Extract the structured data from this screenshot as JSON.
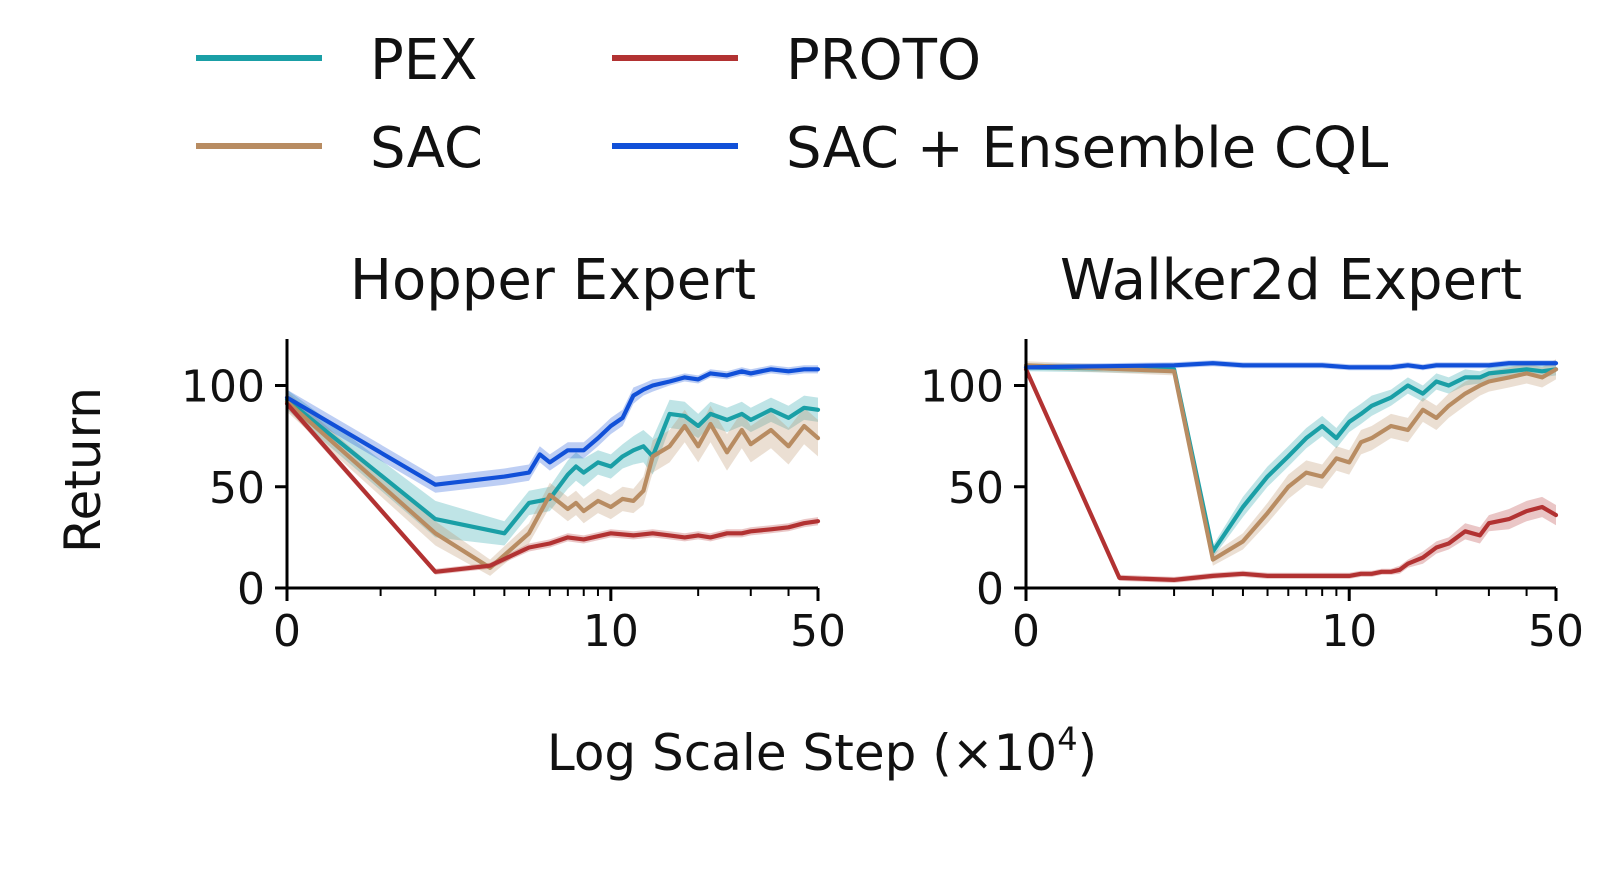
{
  "colors": {
    "PEX": "#1a9fa6",
    "SAC": "#b88c62",
    "PROTO": "#b23232",
    "SAC + Ensemble CQL": "#1150d8"
  },
  "chart_data": [
    {
      "type": "line",
      "title": "Hopper Expert",
      "xlabel": "Log Scale Step (×10⁴)",
      "ylabel": "Return",
      "x_scale": "log1p",
      "xlim": [
        0,
        50
      ],
      "ylim": [
        0,
        120
      ],
      "x_ticks": [
        0,
        10,
        50
      ],
      "x_tick_labels": [
        "0",
        "10",
        "50"
      ],
      "y_ticks": [
        0,
        50,
        100
      ],
      "y_tick_labels": [
        "0",
        "50",
        "100"
      ],
      "grid": false,
      "series": [
        {
          "name": "PEX",
          "x": [
            0,
            2,
            4,
            5,
            6,
            7,
            7.5,
            8,
            9,
            10,
            11,
            12,
            13,
            14,
            16,
            18,
            20,
            22,
            25,
            28,
            30,
            35,
            40,
            45,
            50
          ],
          "y": [
            93,
            34,
            27,
            42,
            44,
            56,
            60,
            57,
            62,
            60,
            65,
            68,
            70,
            65,
            86,
            85,
            80,
            86,
            83,
            86,
            83,
            88,
            84,
            89,
            88
          ],
          "band": [
            5,
            9,
            6,
            6,
            6,
            7,
            7,
            7,
            6,
            6,
            6,
            7,
            8,
            9,
            7,
            7,
            6,
            6,
            6,
            6,
            6,
            6,
            6,
            6,
            6
          ]
        },
        {
          "name": "SAC",
          "x": [
            0,
            2,
            3.5,
            5,
            6,
            7,
            7.5,
            8,
            9,
            10,
            11,
            12,
            13,
            14,
            16,
            18,
            20,
            22,
            25,
            28,
            30,
            35,
            40,
            45,
            50
          ],
          "y": [
            92,
            27,
            10,
            27,
            46,
            39,
            42,
            38,
            43,
            40,
            44,
            43,
            48,
            65,
            70,
            80,
            70,
            81,
            67,
            78,
            71,
            78,
            70,
            80,
            74
          ],
          "band": [
            5,
            6,
            4,
            5,
            6,
            6,
            6,
            6,
            6,
            6,
            6,
            6,
            7,
            8,
            8,
            8,
            8,
            9,
            9,
            9,
            9,
            9,
            9,
            9,
            9
          ]
        },
        {
          "name": "PROTO",
          "x": [
            0,
            2,
            3.5,
            5,
            6,
            7,
            8,
            10,
            12,
            14,
            16,
            18,
            20,
            22,
            25,
            28,
            30,
            35,
            40,
            45,
            50
          ],
          "y": [
            91,
            8,
            11,
            20,
            22,
            25,
            24,
            27,
            26,
            27,
            26,
            25,
            26,
            25,
            27,
            27,
            28,
            29,
            30,
            32,
            33
          ],
          "band": [
            2,
            1.5,
            1.5,
            2,
            2,
            2,
            2,
            2,
            2,
            2,
            2,
            2,
            2,
            2,
            2,
            2,
            2,
            2,
            2,
            2,
            2
          ]
        },
        {
          "name": "SAC + Ensemble CQL",
          "x": [
            0,
            2,
            4,
            5,
            5.5,
            6,
            7,
            8,
            9,
            10,
            11,
            12,
            13,
            14,
            16,
            18,
            20,
            22,
            25,
            28,
            30,
            35,
            40,
            45,
            50
          ],
          "y": [
            94,
            51,
            55,
            57,
            66,
            62,
            68,
            68,
            74,
            80,
            84,
            95,
            98,
            100,
            102,
            104,
            103,
            106,
            105,
            107,
            106,
            108,
            107,
            108,
            108
          ],
          "band": [
            4,
            4,
            4,
            4,
            4,
            4,
            4,
            4,
            4,
            4,
            4,
            4,
            3,
            3,
            2,
            2,
            2,
            2,
            2,
            2,
            2,
            2,
            2,
            2,
            2
          ]
        }
      ]
    },
    {
      "type": "line",
      "title": "Walker2d Expert",
      "xlabel": "Log Scale Step (×10⁴)",
      "ylabel": "",
      "x_scale": "log1p",
      "xlim": [
        0,
        50
      ],
      "ylim": [
        0,
        120
      ],
      "x_ticks": [
        0,
        10,
        50
      ],
      "x_tick_labels": [
        "0",
        "10",
        "50"
      ],
      "y_ticks": [
        0,
        50,
        100
      ],
      "y_tick_labels": [
        "0",
        "50",
        "100"
      ],
      "grid": false,
      "series": [
        {
          "name": "PEX",
          "x": [
            0,
            2,
            3,
            4,
            5,
            6,
            7,
            8,
            9,
            10,
            11,
            12,
            14,
            16,
            18,
            20,
            22,
            25,
            28,
            30,
            35,
            40,
            45,
            50
          ],
          "y": [
            109,
            108,
            18,
            40,
            55,
            65,
            74,
            80,
            74,
            82,
            86,
            90,
            94,
            100,
            96,
            102,
            100,
            104,
            104,
            106,
            107,
            108,
            107,
            108
          ],
          "band": [
            2,
            2,
            3,
            5,
            5,
            5,
            5,
            5,
            5,
            5,
            5,
            5,
            4,
            4,
            4,
            4,
            4,
            4,
            3,
            3,
            3,
            3,
            3,
            3
          ]
        },
        {
          "name": "SAC",
          "x": [
            0,
            2,
            3,
            4,
            5,
            6,
            7,
            8,
            9,
            10,
            11,
            12,
            14,
            16,
            18,
            20,
            22,
            25,
            28,
            30,
            35,
            40,
            45,
            50
          ],
          "y": [
            110,
            107,
            14,
            23,
            37,
            50,
            57,
            55,
            64,
            62,
            72,
            74,
            80,
            78,
            88,
            84,
            90,
            96,
            100,
            102,
            104,
            106,
            104,
            108
          ],
          "band": [
            2,
            2,
            3,
            4,
            5,
            6,
            6,
            6,
            6,
            6,
            6,
            6,
            6,
            6,
            6,
            6,
            6,
            6,
            5,
            5,
            5,
            5,
            5,
            5
          ]
        },
        {
          "name": "PROTO",
          "x": [
            0,
            1,
            2,
            3,
            4,
            5,
            6,
            7,
            8,
            9,
            10,
            11,
            12,
            13,
            14,
            15,
            16,
            18,
            20,
            22,
            25,
            28,
            30,
            35,
            40,
            45,
            50
          ],
          "y": [
            108,
            5,
            4,
            6,
            7,
            6,
            6,
            6,
            6,
            6,
            6,
            7,
            7,
            8,
            8,
            9,
            12,
            15,
            20,
            22,
            28,
            26,
            32,
            34,
            38,
            40,
            36
          ],
          "band": [
            2,
            1.5,
            1.5,
            1.5,
            1.5,
            1.5,
            1.5,
            1.5,
            1.5,
            1.5,
            1.5,
            1.5,
            1.5,
            1.5,
            1.5,
            2,
            2,
            3,
            3,
            3,
            4,
            4,
            4,
            5,
            5,
            5,
            5
          ]
        },
        {
          "name": "SAC + Ensemble CQL",
          "x": [
            0,
            2,
            3,
            4,
            5,
            6,
            8,
            10,
            12,
            14,
            16,
            18,
            20,
            25,
            30,
            35,
            40,
            45,
            50
          ],
          "y": [
            109,
            110,
            111,
            110,
            110,
            110,
            110,
            109,
            109,
            109,
            110,
            109,
            110,
            110,
            110,
            111,
            111,
            111,
            111
          ],
          "band": [
            1.5,
            1.5,
            1.5,
            1.5,
            1.5,
            1.5,
            1.5,
            1.5,
            1.5,
            1.5,
            1.5,
            1.5,
            1.5,
            1.5,
            1.5,
            1.5,
            1.5,
            1.5,
            1.5
          ]
        }
      ]
    }
  ],
  "legend": {
    "placement": "top",
    "entries": [
      "PEX",
      "SAC",
      "PROTO",
      "SAC + Ensemble CQL"
    ]
  },
  "figure": {
    "xlabel_main": "Log Scale Step (×10",
    "xlabel_exp": "4",
    "xlabel_close": ")",
    "ylabel": "Return"
  }
}
